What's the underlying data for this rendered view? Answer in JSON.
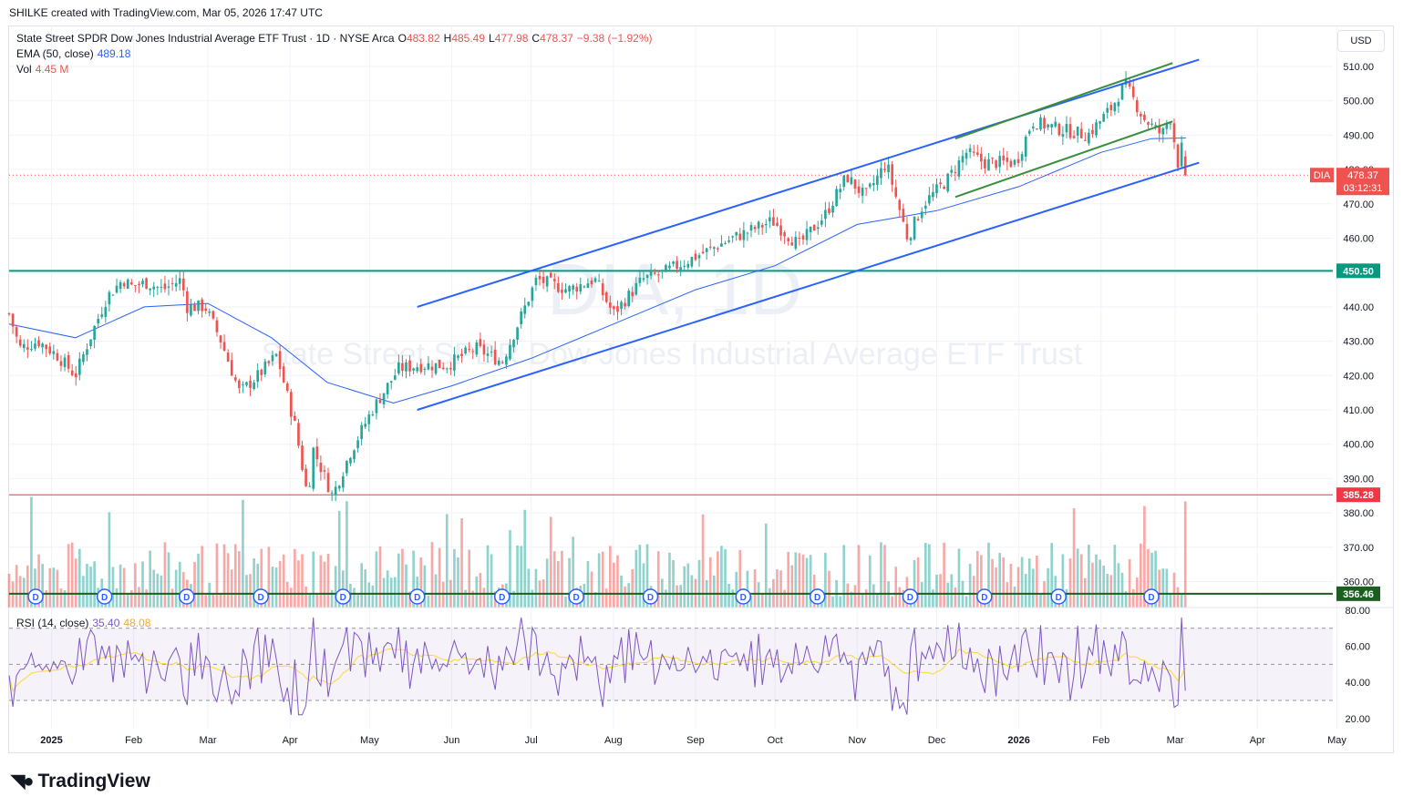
{
  "header": {
    "created_by": "SHILKE created with TradingView.com, Mar 05, 2026 17:47 UTC"
  },
  "legend": {
    "title": "State Street SPDR Dow Jones Industrial Average ETF Trust · 1D · NYSE Arca",
    "o_label": "O",
    "o_value": "483.82",
    "h_label": "H",
    "h_value": "485.49",
    "l_label": "L",
    "l_value": "477.98",
    "c_label": "C",
    "c_value": "478.37",
    "change": "−9.38 (−1.92%)",
    "ema_label": "EMA (50, close)",
    "ema_value": "489.18",
    "vol_label": "Vol",
    "vol_value": "4.45 M",
    "rsi_label": "RSI (14, close)",
    "rsi_value": "35.40",
    "rsi_ma_value": "48.08"
  },
  "watermark": {
    "symbol": "DIA, 1D",
    "name": "State Street SPDR Dow Jones Industrial Average ETF Trust"
  },
  "currency_button": "USD",
  "brand": "TradingView",
  "colors": {
    "up": "#26a69a",
    "down": "#ef5350",
    "ema": "#2962ff",
    "channel": "#2962ff",
    "wedge": "#388e3c",
    "support": "#089981",
    "resistance_red": "#f23645",
    "bottom_line": "#1b5e20",
    "rsi": "#7e57c2",
    "rsi_ma": "#fdd835"
  },
  "chart_data": {
    "type": "candlestick",
    "symbol": "DIA",
    "timeframe": "1D",
    "y_axis_ticks": [
      510,
      500,
      490,
      480,
      470,
      460,
      450,
      440,
      430,
      420,
      410,
      400,
      390,
      380,
      370,
      360
    ],
    "x_axis_ticks": [
      "2025",
      "Feb",
      "Mar",
      "Apr",
      "May",
      "Jun",
      "Jul",
      "Aug",
      "Sep",
      "Oct",
      "Nov",
      "Dec",
      "2026",
      "Feb",
      "Mar",
      "Apr",
      "May"
    ],
    "bold_x_ticks": [
      "2025",
      "2026"
    ],
    "price_labels": [
      {
        "name": "DIA",
        "value": "478.37",
        "sub": "03:12:31"
      },
      {
        "name": "level",
        "value": "450.50"
      },
      {
        "name": "level",
        "value": "385.28"
      },
      {
        "name": "level",
        "value": "356.46"
      }
    ],
    "horizontal_levels": [
      450.5,
      385.28,
      356.46
    ],
    "last_close": 478.37,
    "ema_last": 489.18,
    "rsi_axis_ticks": [
      "80.00",
      "60.00",
      "40.00",
      "20.00"
    ],
    "rsi_bands": [
      70,
      50,
      30
    ],
    "rsi_last": 35.4,
    "rsi_ma_last": 48.08,
    "dividend_marker": "D",
    "price_path": [
      [
        "2024-12-16",
        438
      ],
      [
        "2024-12-20",
        428
      ],
      [
        "2024-12-27",
        430
      ],
      [
        "2025-01-03",
        426
      ],
      [
        "2025-01-10",
        420
      ],
      [
        "2025-01-15",
        430
      ],
      [
        "2025-01-22",
        443
      ],
      [
        "2025-01-28",
        448
      ],
      [
        "2025-01-31",
        446
      ],
      [
        "2025-02-06",
        447
      ],
      [
        "2025-02-12",
        445
      ],
      [
        "2025-02-19",
        448
      ],
      [
        "2025-02-21",
        440
      ],
      [
        "2025-02-28",
        440
      ],
      [
        "2025-03-06",
        430
      ],
      [
        "2025-03-13",
        415
      ],
      [
        "2025-03-20",
        420
      ],
      [
        "2025-03-27",
        426
      ],
      [
        "2025-04-03",
        405
      ],
      [
        "2025-04-08",
        383
      ],
      [
        "2025-04-09",
        400
      ],
      [
        "2025-04-17",
        385
      ],
      [
        "2025-04-24",
        398
      ],
      [
        "2025-05-02",
        410
      ],
      [
        "2025-05-12",
        422
      ],
      [
        "2025-05-20",
        423
      ],
      [
        "2025-05-30",
        423
      ],
      [
        "2025-06-10",
        428
      ],
      [
        "2025-06-20",
        424
      ],
      [
        "2025-07-03",
        448
      ],
      [
        "2025-07-15",
        445
      ],
      [
        "2025-07-25",
        448
      ],
      [
        "2025-08-01",
        438
      ],
      [
        "2025-08-12",
        448
      ],
      [
        "2025-08-20",
        450
      ],
      [
        "2025-09-02",
        455
      ],
      [
        "2025-09-15",
        460
      ],
      [
        "2025-09-30",
        465
      ],
      [
        "2025-10-10",
        458
      ],
      [
        "2025-10-20",
        467
      ],
      [
        "2025-10-28",
        478
      ],
      [
        "2025-11-04",
        472
      ],
      [
        "2025-11-12",
        482
      ],
      [
        "2025-11-20",
        460
      ],
      [
        "2025-11-26",
        470
      ],
      [
        "2025-12-05",
        477
      ],
      [
        "2025-12-12",
        485
      ],
      [
        "2025-12-19",
        482
      ],
      [
        "2025-12-31",
        482
      ],
      [
        "2026-01-06",
        494
      ],
      [
        "2026-01-15",
        492
      ],
      [
        "2026-01-27",
        490
      ],
      [
        "2026-02-05",
        498
      ],
      [
        "2026-02-10",
        505
      ],
      [
        "2026-02-17",
        495
      ],
      [
        "2026-02-24",
        490
      ],
      [
        "2026-02-27",
        496
      ],
      [
        "2026-03-02",
        482
      ],
      [
        "2026-03-04",
        488
      ],
      [
        "2026-03-05",
        478.37
      ]
    ],
    "ema_path": [
      [
        "2024-12-16",
        435
      ],
      [
        "2025-01-10",
        431
      ],
      [
        "2025-02-05",
        440
      ],
      [
        "2025-03-01",
        441
      ],
      [
        "2025-03-25",
        431
      ],
      [
        "2025-04-15",
        418
      ],
      [
        "2025-05-10",
        412
      ],
      [
        "2025-06-01",
        417
      ],
      [
        "2025-07-01",
        425
      ],
      [
        "2025-08-01",
        435
      ],
      [
        "2025-09-01",
        445
      ],
      [
        "2025-10-01",
        452
      ],
      [
        "2025-11-01",
        464
      ],
      [
        "2025-12-01",
        468
      ],
      [
        "2026-01-01",
        475
      ],
      [
        "2026-02-01",
        485
      ],
      [
        "2026-02-20",
        489
      ],
      [
        "2026-03-05",
        489.18
      ]
    ],
    "channel_lines": [
      {
        "name": "upper",
        "points": [
          [
            "2025-05-19",
            440
          ],
          [
            "2026-03-10",
            512
          ]
        ]
      },
      {
        "name": "lower",
        "points": [
          [
            "2025-05-19",
            410
          ],
          [
            "2026-03-10",
            482
          ]
        ]
      }
    ],
    "wedge_lines": [
      {
        "name": "upper",
        "points": [
          [
            "2025-12-08",
            489
          ],
          [
            "2026-02-28",
            511
          ]
        ]
      },
      {
        "name": "lower",
        "points": [
          [
            "2025-12-08",
            472
          ],
          [
            "2026-02-28",
            494
          ]
        ]
      }
    ]
  }
}
